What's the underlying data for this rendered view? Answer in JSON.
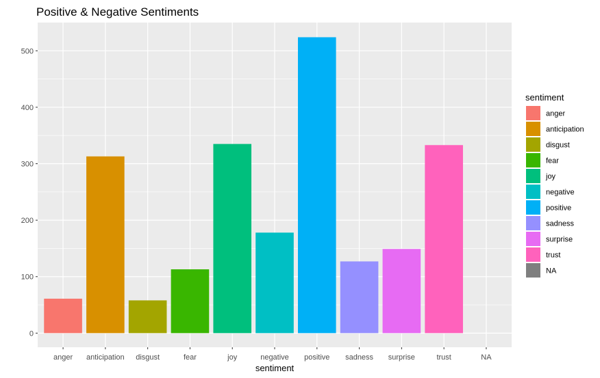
{
  "chart_data": {
    "type": "bar",
    "title": "Positive & Negative Sentiments",
    "xlabel": "sentiment",
    "ylabel": "",
    "ylim": [
      -25,
      550
    ],
    "yticks": [
      0,
      100,
      200,
      300,
      400,
      500
    ],
    "grid": true,
    "legend": {
      "title": "sentiment",
      "position": "right"
    },
    "categories": [
      "anger",
      "anticipation",
      "disgust",
      "fear",
      "joy",
      "negative",
      "positive",
      "sadness",
      "surprise",
      "trust",
      "NA"
    ],
    "values": [
      61,
      313,
      58,
      113,
      335,
      178,
      524,
      127,
      149,
      333,
      0
    ],
    "colors": [
      "#F8766D",
      "#D89000",
      "#A3A500",
      "#39B600",
      "#00BF7D",
      "#00BFC4",
      "#00B0F6",
      "#9590FF",
      "#E76BF3",
      "#FF62BC",
      "#7F7F7F"
    ]
  }
}
